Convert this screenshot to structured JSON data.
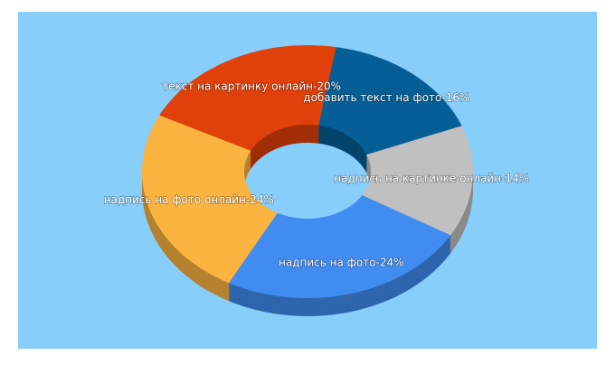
{
  "chart_data": {
    "type": "pie",
    "values": [
      16,
      14,
      24,
      24,
      20
    ],
    "value_labels": [
      "добавить текст на фото-16%",
      "надпись на картинке онлайн-14%",
      "надпись на фото-24%",
      "надпись на фото онлайн-24%",
      "текст на картинку онлайн-20%"
    ],
    "colors": [
      "#055f96",
      "#c0c0c0",
      "#418cf0",
      "#fcb441",
      "#e0400a"
    ],
    "donut": true
  }
}
